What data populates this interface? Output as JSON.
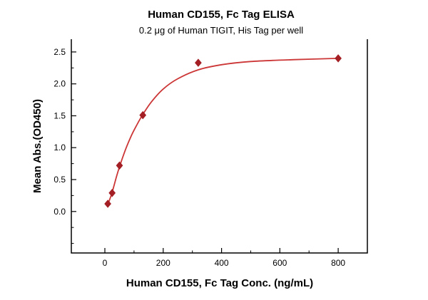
{
  "chart_data": {
    "type": "scatter",
    "title": "Human CD155, Fc Tag ELISA",
    "subtitle": "0.2 μg of Human TIGIT, His Tag per well",
    "xlabel": "Human CD155, Fc Tag Conc. (ng/mL)",
    "ylabel": "Mean Abs.(OD450)",
    "xlim": [
      -115,
      900
    ],
    "ylim": [
      -0.65,
      2.7
    ],
    "x_ticks": [
      0,
      200,
      400,
      600,
      800
    ],
    "x_minor_ticks": [
      100,
      300,
      500,
      700
    ],
    "y_ticks": [
      0.0,
      0.5,
      1.0,
      1.5,
      2.0,
      2.5
    ],
    "y_minor_ticks": [
      -0.5,
      -0.25,
      0.25,
      0.75,
      1.25,
      1.75,
      2.25
    ],
    "grid": false,
    "legend": null,
    "points": [
      [
        10,
        0.12
      ],
      [
        25,
        0.29
      ],
      [
        50,
        0.72
      ],
      [
        130,
        1.51
      ],
      [
        320,
        2.33
      ],
      [
        800,
        2.4
      ]
    ],
    "fit_curve": [
      [
        8,
        0.08
      ],
      [
        15,
        0.17
      ],
      [
        25,
        0.3
      ],
      [
        40,
        0.55
      ],
      [
        50,
        0.7
      ],
      [
        70,
        0.96
      ],
      [
        90,
        1.18
      ],
      [
        110,
        1.36
      ],
      [
        130,
        1.52
      ],
      [
        160,
        1.72
      ],
      [
        200,
        1.92
      ],
      [
        250,
        2.08
      ],
      [
        320,
        2.22
      ],
      [
        400,
        2.3
      ],
      [
        500,
        2.35
      ],
      [
        650,
        2.38
      ],
      [
        800,
        2.4
      ]
    ],
    "colors": {
      "point": "#a31f24",
      "line": "#cc3636",
      "axis": "#000000",
      "text": "#000000"
    }
  }
}
